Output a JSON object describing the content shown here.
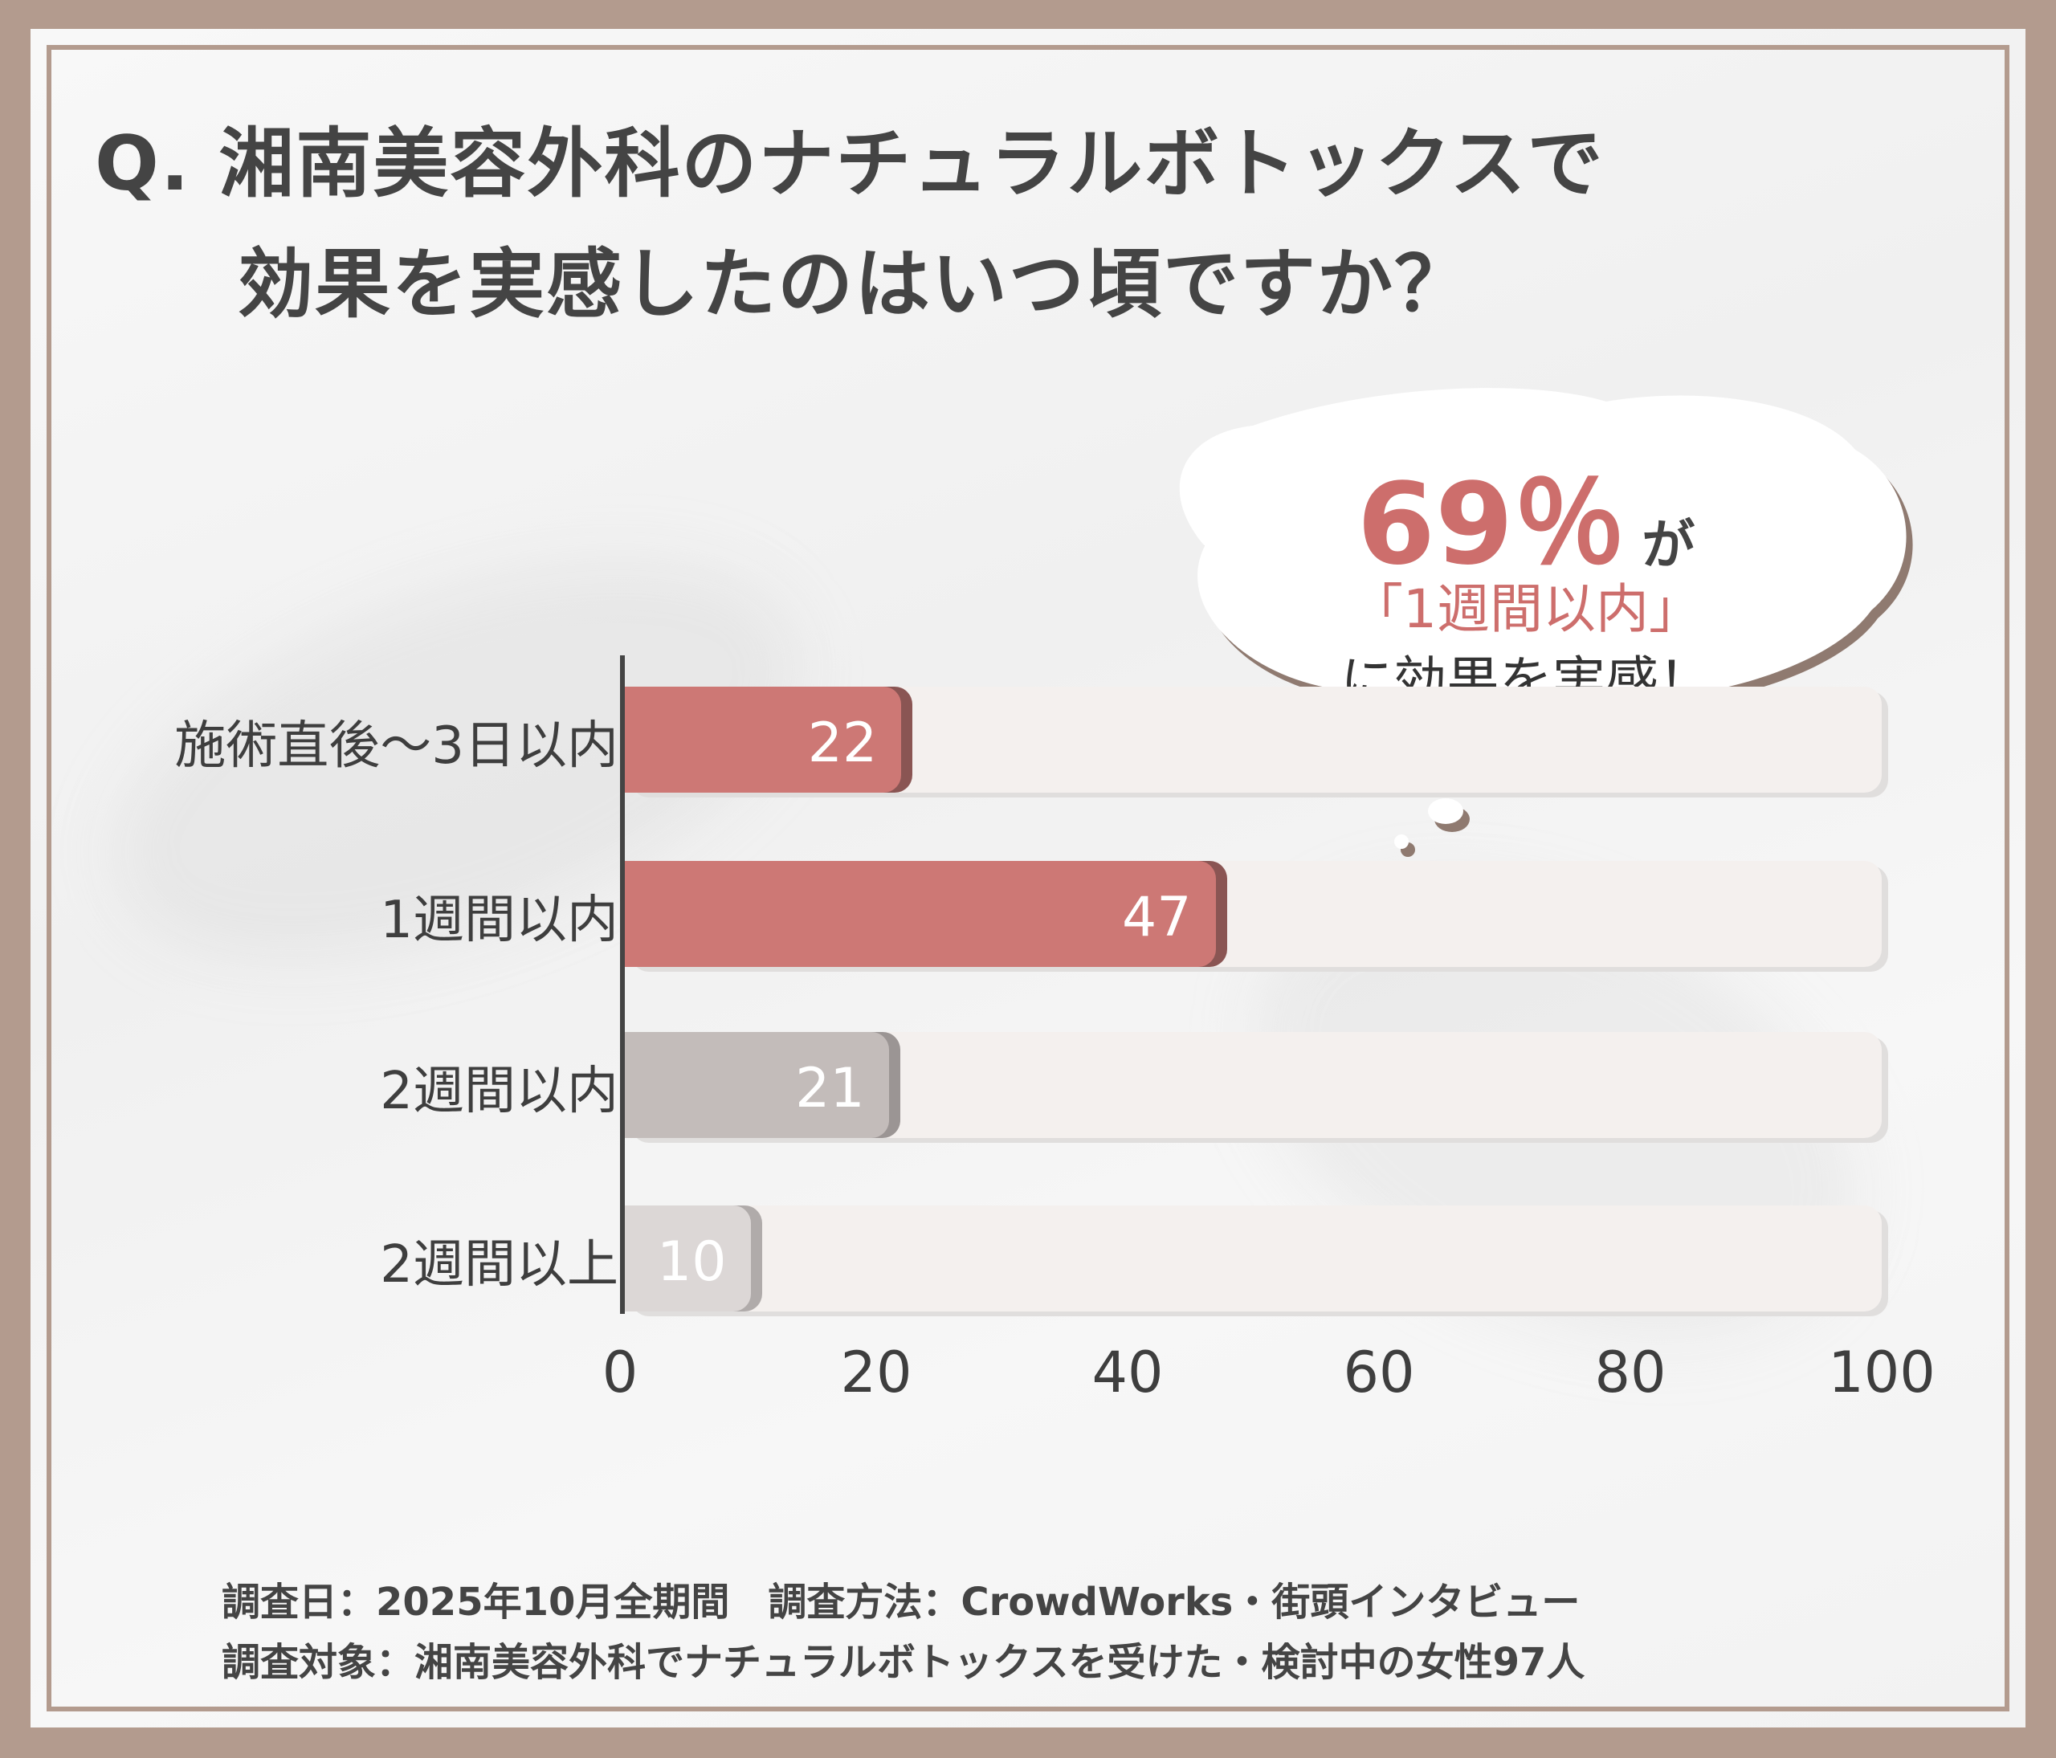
{
  "title": {
    "line1": "Q. 湘南美容外科のナチュラルボトックスで",
    "line2": "効果を実感したのはいつ頃ですか？"
  },
  "callout": {
    "percent": "69％",
    "ga": "が",
    "highlight": "「1週間以内」",
    "tail": "に効果を実感！"
  },
  "chart_data": {
    "type": "bar",
    "orientation": "horizontal",
    "categories": [
      "施術直後〜3日以内",
      "1週間以内",
      "2週間以内",
      "2週間以上"
    ],
    "values": [
      22,
      47,
      21,
      10
    ],
    "xlim": [
      0,
      100
    ],
    "ticks": [
      "0",
      "20",
      "40",
      "60",
      "80",
      "100"
    ],
    "colors": [
      "#cd7875",
      "#cd7875",
      "#c3bcba",
      "#dcd7d6"
    ],
    "shadow_colors": [
      "#8a5553",
      "#8a5553",
      "#9b9594",
      "#b0abaa"
    ],
    "grid": false
  },
  "footer": {
    "line1": "調査日：2025年10月全期間　調査方法：CrowdWorks・街頭インタビュー",
    "line2": "調査対象：湘南美容外科でナチュラルボトックスを受けた・検討中の女性97人"
  }
}
